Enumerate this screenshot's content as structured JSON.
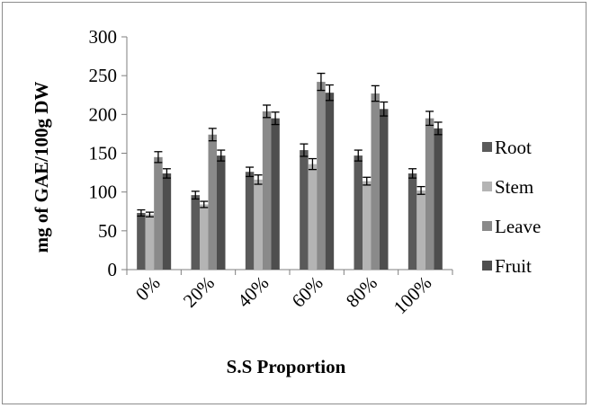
{
  "chart_data": {
    "type": "bar",
    "title": "",
    "xlabel": "S.S Proportion",
    "ylabel": "mg of GAE/100g DW",
    "categories": [
      "0%",
      "20%",
      "40%",
      "60%",
      "80%",
      "100%"
    ],
    "ylim": [
      0,
      300
    ],
    "yticks": [
      0,
      50,
      100,
      150,
      200,
      250,
      300
    ],
    "grid": false,
    "legend_position": "right",
    "error_bars": true,
    "series": [
      {
        "name": "Root",
        "color": "#5a5a5a",
        "values": [
          73,
          96,
          126,
          154,
          147,
          124
        ],
        "errors": [
          4,
          5,
          6,
          8,
          7,
          6
        ]
      },
      {
        "name": "Stem",
        "color": "#b4b4b4",
        "values": [
          71,
          84,
          116,
          136,
          114,
          102
        ],
        "errors": [
          3,
          4,
          6,
          7,
          5,
          5
        ]
      },
      {
        "name": "Leave",
        "color": "#8a8a8a",
        "values": [
          145,
          174,
          204,
          242,
          227,
          195
        ],
        "errors": [
          7,
          8,
          8,
          11,
          10,
          9
        ]
      },
      {
        "name": "Fruit",
        "color": "#4e4e4e",
        "values": [
          124,
          147,
          195,
          228,
          207,
          182
        ],
        "errors": [
          6,
          7,
          8,
          10,
          9,
          8
        ]
      }
    ]
  }
}
